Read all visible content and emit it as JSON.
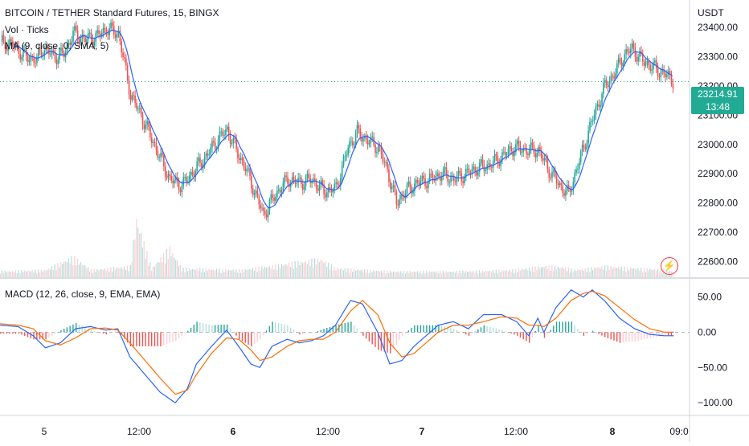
{
  "chart_data": [
    {
      "type": "candlestick",
      "title": "BITCOIN / TETHER Standard Futures, 15, BINGX",
      "currency": "USDT",
      "indicators": [
        "Vol · Ticks",
        "MA (9, close, 0, SMA, 5)"
      ],
      "x_tick_labels": [
        "5",
        "12:00",
        "6",
        "12:00",
        "7",
        "12:00",
        "8",
        "09:0"
      ],
      "y_tick_labels": [
        "23400.00",
        "23300.00",
        "23200.00",
        "23100.00",
        "23000.00",
        "22900.00",
        "22800.00",
        "22700.00",
        "22600.00"
      ],
      "ylim": [
        22560,
        23480
      ],
      "last_price": "23214.91",
      "countdown": "13:48",
      "colors": {
        "up": "#26a69a",
        "down": "#ef5350",
        "ma": "#2962ff",
        "last_price": "#22ab94"
      },
      "close_path": [
        [
          0,
          23350
        ],
        [
          8,
          23340
        ],
        [
          16,
          23300
        ],
        [
          24,
          23290
        ],
        [
          28,
          23330
        ],
        [
          36,
          23300
        ],
        [
          42,
          23310
        ],
        [
          48,
          23380
        ],
        [
          56,
          23360
        ],
        [
          64,
          23370
        ],
        [
          70,
          23395
        ],
        [
          78,
          23380
        ],
        [
          86,
          23170
        ],
        [
          92,
          23110
        ],
        [
          100,
          23020
        ],
        [
          106,
          22950
        ],
        [
          112,
          22880
        ],
        [
          120,
          22860
        ],
        [
          128,
          22910
        ],
        [
          136,
          22960
        ],
        [
          144,
          23020
        ],
        [
          150,
          23050
        ],
        [
          156,
          22980
        ],
        [
          162,
          22920
        ],
        [
          168,
          22840
        ],
        [
          174,
          22760
        ],
        [
          182,
          22830
        ],
        [
          190,
          22880
        ],
        [
          198,
          22870
        ],
        [
          206,
          22880
        ],
        [
          214,
          22840
        ],
        [
          222,
          22850
        ],
        [
          230,
          22990
        ],
        [
          236,
          23040
        ],
        [
          244,
          23010
        ],
        [
          250,
          22990
        ],
        [
          256,
          22910
        ],
        [
          262,
          22800
        ],
        [
          268,
          22840
        ],
        [
          276,
          22870
        ],
        [
          284,
          22880
        ],
        [
          292,
          22900
        ],
        [
          300,
          22880
        ],
        [
          308,
          22900
        ],
        [
          316,
          22920
        ],
        [
          324,
          22930
        ],
        [
          332,
          22960
        ],
        [
          340,
          22990
        ],
        [
          348,
          22980
        ],
        [
          356,
          22980
        ],
        [
          362,
          22920
        ],
        [
          370,
          22860
        ],
        [
          376,
          22830
        ],
        [
          384,
          22960
        ],
        [
          392,
          23090
        ],
        [
          400,
          23200
        ],
        [
          406,
          23240
        ],
        [
          412,
          23300
        ],
        [
          418,
          23330
        ],
        [
          424,
          23290
        ],
        [
          430,
          23270
        ],
        [
          436,
          23250
        ],
        [
          440,
          23240
        ],
        [
          446,
          23215
        ]
      ],
      "volume_path": [
        [
          0,
          8
        ],
        [
          30,
          10
        ],
        [
          48,
          28
        ],
        [
          60,
          10
        ],
        [
          86,
          15
        ],
        [
          90,
          80
        ],
        [
          100,
          12
        ],
        [
          112,
          40
        ],
        [
          120,
          12
        ],
        [
          160,
          10
        ],
        [
          212,
          25
        ],
        [
          222,
          12
        ],
        [
          260,
          8
        ],
        [
          300,
          8
        ],
        [
          340,
          10
        ],
        [
          360,
          15
        ],
        [
          372,
          14
        ],
        [
          380,
          10
        ],
        [
          400,
          15
        ],
        [
          440,
          10
        ],
        [
          446,
          8
        ]
      ]
    },
    {
      "type": "line",
      "title": "MACD (12, 26, close, 9, EMA, EMA)",
      "y_tick_labels": [
        "50.00",
        "0.00",
        "−50.00",
        "−100.00"
      ],
      "ylim": [
        -110,
        70
      ],
      "series": [
        {
          "color": "#2962ff",
          "values": [
            [
              0,
              10
            ],
            [
              12,
              8
            ],
            [
              22,
              -5
            ],
            [
              30,
              -22
            ],
            [
              40,
              -15
            ],
            [
              50,
              5
            ],
            [
              60,
              8
            ],
            [
              70,
              3
            ],
            [
              78,
              5
            ],
            [
              86,
              -35
            ],
            [
              96,
              -60
            ],
            [
              106,
              -85
            ],
            [
              116,
              -100
            ],
            [
              124,
              -80
            ],
            [
              130,
              -45
            ],
            [
              140,
              -20
            ],
            [
              150,
              3
            ],
            [
              158,
              -20
            ],
            [
              166,
              -45
            ],
            [
              172,
              -50
            ],
            [
              180,
              -20
            ],
            [
              190,
              -10
            ],
            [
              198,
              -15
            ],
            [
              206,
              -12
            ],
            [
              214,
              -5
            ],
            [
              222,
              10
            ],
            [
              232,
              45
            ],
            [
              240,
              40
            ],
            [
              250,
              0
            ],
            [
              258,
              -45
            ],
            [
              266,
              -40
            ],
            [
              274,
              -20
            ],
            [
              282,
              -5
            ],
            [
              290,
              10
            ],
            [
              300,
              15
            ],
            [
              310,
              5
            ],
            [
              320,
              25
            ],
            [
              332,
              25
            ],
            [
              342,
              15
            ],
            [
              350,
              -5
            ],
            [
              356,
              20
            ],
            [
              360,
              0
            ],
            [
              368,
              35
            ],
            [
              378,
              60
            ],
            [
              386,
              50
            ],
            [
              392,
              60
            ],
            [
              400,
              45
            ],
            [
              410,
              20
            ],
            [
              420,
              5
            ],
            [
              430,
              -3
            ],
            [
              440,
              -5
            ],
            [
              446,
              -5
            ]
          ]
        },
        {
          "color": "#ff6d00",
          "values": [
            [
              0,
              12
            ],
            [
              12,
              10
            ],
            [
              22,
              5
            ],
            [
              30,
              -12
            ],
            [
              40,
              -18
            ],
            [
              50,
              -8
            ],
            [
              60,
              5
            ],
            [
              70,
              6
            ],
            [
              78,
              3
            ],
            [
              86,
              -15
            ],
            [
              96,
              -40
            ],
            [
              106,
              -65
            ],
            [
              116,
              -88
            ],
            [
              124,
              -82
            ],
            [
              130,
              -60
            ],
            [
              140,
              -30
            ],
            [
              150,
              -8
            ],
            [
              158,
              -10
            ],
            [
              166,
              -25
            ],
            [
              172,
              -40
            ],
            [
              180,
              -35
            ],
            [
              190,
              -20
            ],
            [
              198,
              -12
            ],
            [
              206,
              -10
            ],
            [
              214,
              -10
            ],
            [
              222,
              0
            ],
            [
              232,
              30
            ],
            [
              240,
              45
            ],
            [
              250,
              25
            ],
            [
              258,
              -15
            ],
            [
              266,
              -35
            ],
            [
              274,
              -30
            ],
            [
              282,
              -15
            ],
            [
              290,
              0
            ],
            [
              300,
              10
            ],
            [
              310,
              10
            ],
            [
              320,
              15
            ],
            [
              332,
              22
            ],
            [
              342,
              20
            ],
            [
              350,
              10
            ],
            [
              356,
              10
            ],
            [
              360,
              8
            ],
            [
              368,
              20
            ],
            [
              378,
              45
            ],
            [
              386,
              55
            ],
            [
              392,
              58
            ],
            [
              400,
              52
            ],
            [
              410,
              35
            ],
            [
              420,
              18
            ],
            [
              430,
              5
            ],
            [
              440,
              0
            ],
            [
              446,
              0
            ]
          ]
        }
      ],
      "histogram_colors": {
        "pos_up": "#26a69a",
        "pos_down": "#b2dfdb",
        "neg_down": "#ef5350",
        "neg_up": "#ffcdd2"
      }
    }
  ],
  "bolt_icon": "lightning-icon"
}
